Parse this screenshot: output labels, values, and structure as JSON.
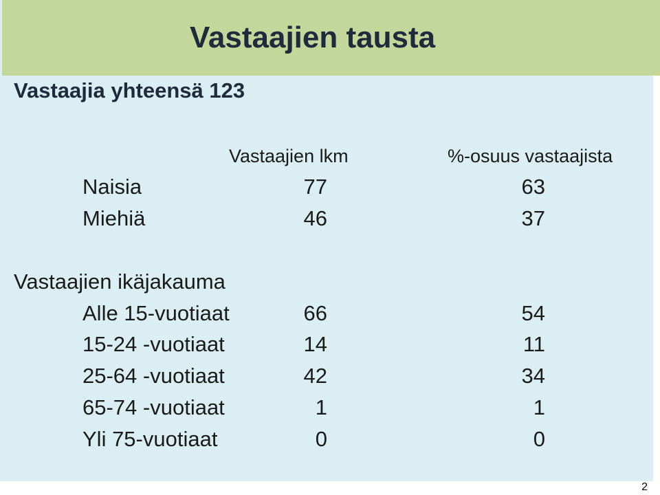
{
  "title": "Vastaajien tausta",
  "subtitle": "Vastaajia yhteensä 123",
  "columns": {
    "count": "Vastaajien lkm",
    "share": "%-osuus vastaajista"
  },
  "gender": [
    {
      "label": "Naisia",
      "count": "77",
      "share": "63"
    },
    {
      "label": "Miehiä",
      "count": "46",
      "share": "37"
    }
  ],
  "age_section_title": "Vastaajien ikäjakauma",
  "age": [
    {
      "label": "Alle 15-vuotiaat",
      "count": "66",
      "share": "54"
    },
    {
      "label": "15-24 -vuotiaat",
      "count": "14",
      "share": "11"
    },
    {
      "label": "25-64 -vuotiaat",
      "count": "42",
      "share": "34"
    },
    {
      "label": "65-74 -vuotiaat",
      "count": "1",
      "share": "1"
    },
    {
      "label": "Yli 75-vuotiaat",
      "count": "0",
      "share": "0"
    }
  ],
  "page_number": "2",
  "colors": {
    "title_band": "#c4d79b",
    "panel": "#daeef3",
    "title_text": "#1f2a3c"
  }
}
